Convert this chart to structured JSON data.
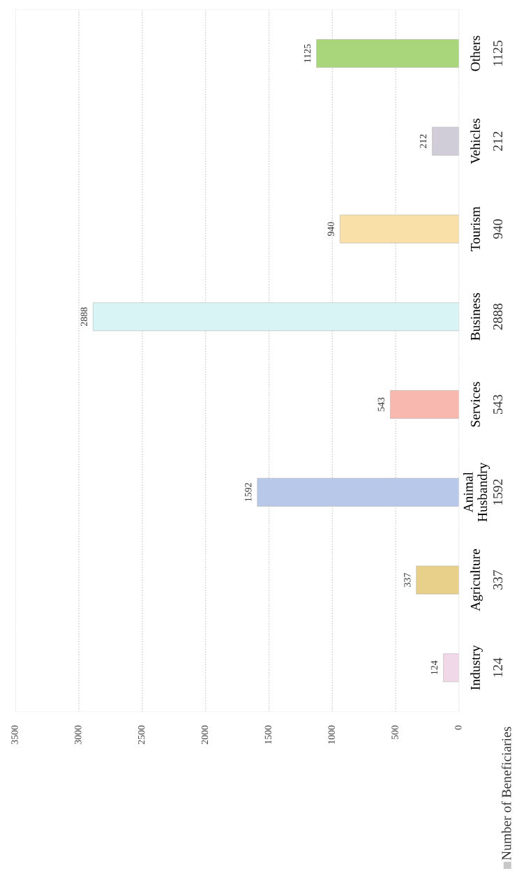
{
  "chart_data": {
    "type": "bar",
    "orientation": "horizontal",
    "categories": [
      "Others",
      "Vehicles",
      "Tourism",
      "Business",
      "Services",
      "Animal\nHusbandry",
      "Agriculture",
      "Industry"
    ],
    "series": [
      {
        "name": "Number of Beneficiaries",
        "color": "#c8c8c8",
        "values": [
          1125,
          212,
          940,
          2888,
          543,
          1592,
          337,
          124
        ],
        "value_labels": [
          "1125",
          "212",
          "940",
          "2888",
          "543",
          "1592",
          "337",
          "124"
        ],
        "colors": [
          "#a9d67a",
          "#d0ccd8",
          "#f8e0a8",
          "#d8f4f4",
          "#f8b8b0",
          "#b8c8e8",
          "#e8d08a",
          "#f0d8e8"
        ]
      }
    ],
    "xlim": [
      3500,
      0
    ],
    "xticks": [
      3500,
      3000,
      2500,
      2000,
      1500,
      1000,
      500,
      0
    ],
    "annotations": [
      "1125",
      "212",
      "940",
      "2888",
      "543",
      "1592",
      "337",
      "124"
    ],
    "grid": "x",
    "legend": "bottom right"
  }
}
